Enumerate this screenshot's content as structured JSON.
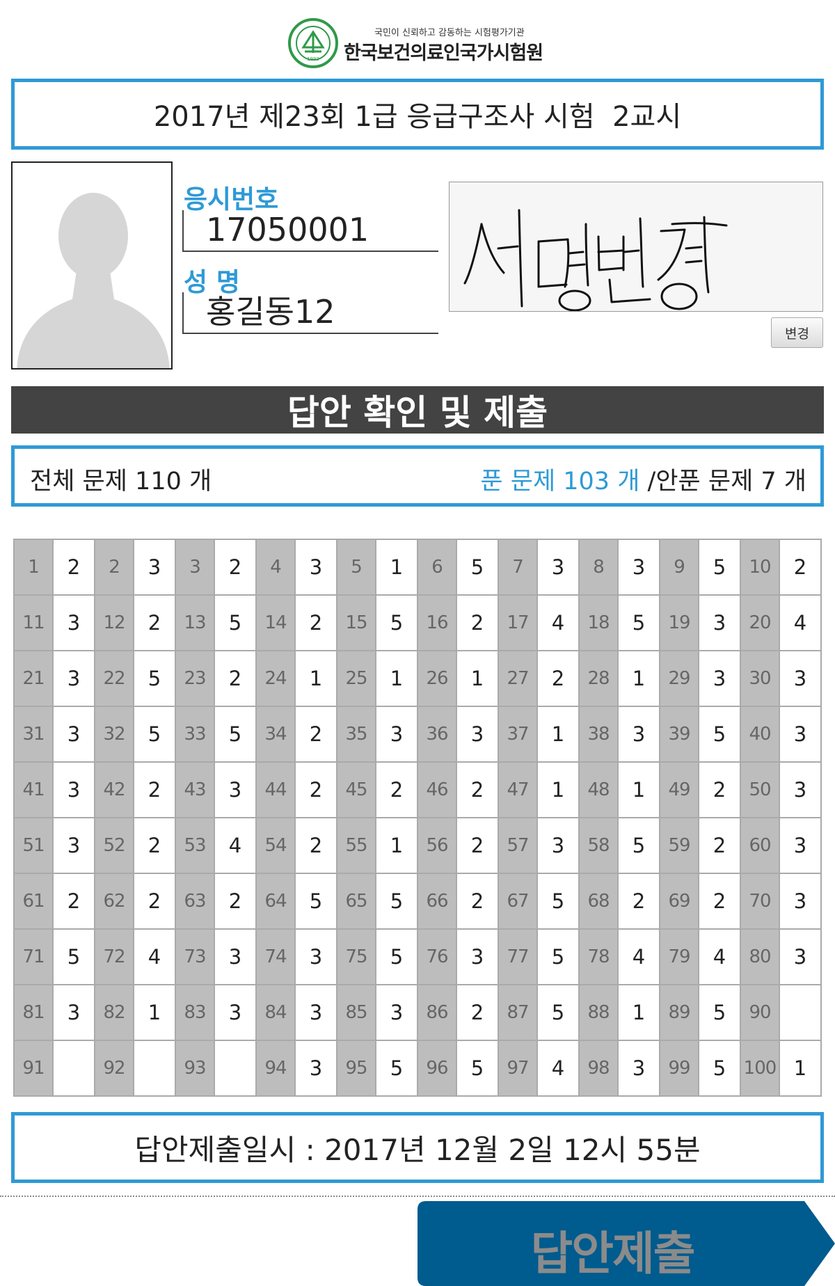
{
  "header": {
    "org_tagline": "국민이 신뢰하고 감동하는 시험평가기관",
    "org_name": "한국보건의료인국가시험원",
    "logo_seal_text": "1992"
  },
  "exam_title": "2017년 제23회 1급 응급구조사 시험  2교시",
  "profile": {
    "id_label": "응시번호",
    "id_value": "17050001",
    "name_label": "성 명",
    "name_value": "홍길동12",
    "signature_text": "서명변경",
    "change_button": "변경"
  },
  "section_title": "답안 확인 및 제출",
  "summary": {
    "total": "전체 문제 110 개",
    "solved": "푼 문제 103 개",
    "separator": "/",
    "unsolved": "안푼 문제 7 개"
  },
  "answers": [
    [
      "1",
      "2"
    ],
    [
      "2",
      "3"
    ],
    [
      "3",
      "2"
    ],
    [
      "4",
      "3"
    ],
    [
      "5",
      "1"
    ],
    [
      "6",
      "5"
    ],
    [
      "7",
      "3"
    ],
    [
      "8",
      "3"
    ],
    [
      "9",
      "5"
    ],
    [
      "10",
      "2"
    ],
    [
      "11",
      "3"
    ],
    [
      "12",
      "2"
    ],
    [
      "13",
      "5"
    ],
    [
      "14",
      "2"
    ],
    [
      "15",
      "5"
    ],
    [
      "16",
      "2"
    ],
    [
      "17",
      "4"
    ],
    [
      "18",
      "5"
    ],
    [
      "19",
      "3"
    ],
    [
      "20",
      "4"
    ],
    [
      "21",
      "3"
    ],
    [
      "22",
      "5"
    ],
    [
      "23",
      "2"
    ],
    [
      "24",
      "1"
    ],
    [
      "25",
      "1"
    ],
    [
      "26",
      "1"
    ],
    [
      "27",
      "2"
    ],
    [
      "28",
      "1"
    ],
    [
      "29",
      "3"
    ],
    [
      "30",
      "3"
    ],
    [
      "31",
      "3"
    ],
    [
      "32",
      "5"
    ],
    [
      "33",
      "5"
    ],
    [
      "34",
      "2"
    ],
    [
      "35",
      "3"
    ],
    [
      "36",
      "3"
    ],
    [
      "37",
      "1"
    ],
    [
      "38",
      "3"
    ],
    [
      "39",
      "5"
    ],
    [
      "40",
      "3"
    ],
    [
      "41",
      "3"
    ],
    [
      "42",
      "2"
    ],
    [
      "43",
      "3"
    ],
    [
      "44",
      "2"
    ],
    [
      "45",
      "2"
    ],
    [
      "46",
      "2"
    ],
    [
      "47",
      "1"
    ],
    [
      "48",
      "1"
    ],
    [
      "49",
      "2"
    ],
    [
      "50",
      "3"
    ],
    [
      "51",
      "3"
    ],
    [
      "52",
      "2"
    ],
    [
      "53",
      "4"
    ],
    [
      "54",
      "2"
    ],
    [
      "55",
      "1"
    ],
    [
      "56",
      "2"
    ],
    [
      "57",
      "3"
    ],
    [
      "58",
      "5"
    ],
    [
      "59",
      "2"
    ],
    [
      "60",
      "3"
    ],
    [
      "61",
      "2"
    ],
    [
      "62",
      "2"
    ],
    [
      "63",
      "2"
    ],
    [
      "64",
      "5"
    ],
    [
      "65",
      "5"
    ],
    [
      "66",
      "2"
    ],
    [
      "67",
      "5"
    ],
    [
      "68",
      "2"
    ],
    [
      "69",
      "2"
    ],
    [
      "70",
      "3"
    ],
    [
      "71",
      "5"
    ],
    [
      "72",
      "4"
    ],
    [
      "73",
      "3"
    ],
    [
      "74",
      "3"
    ],
    [
      "75",
      "5"
    ],
    [
      "76",
      "3"
    ],
    [
      "77",
      "5"
    ],
    [
      "78",
      "4"
    ],
    [
      "79",
      "4"
    ],
    [
      "80",
      "3"
    ],
    [
      "81",
      "3"
    ],
    [
      "82",
      "1"
    ],
    [
      "83",
      "3"
    ],
    [
      "84",
      "3"
    ],
    [
      "85",
      "3"
    ],
    [
      "86",
      "2"
    ],
    [
      "87",
      "5"
    ],
    [
      "88",
      "1"
    ],
    [
      "89",
      "5"
    ],
    [
      "90",
      ""
    ],
    [
      "91",
      ""
    ],
    [
      "92",
      ""
    ],
    [
      "93",
      ""
    ],
    [
      "94",
      "3"
    ],
    [
      "95",
      "5"
    ],
    [
      "96",
      "5"
    ],
    [
      "97",
      "4"
    ],
    [
      "98",
      "3"
    ],
    [
      "99",
      "5"
    ],
    [
      "100",
      "1"
    ]
  ],
  "submit_time": "답안제출일시 : 2017년 12월 2일 12시 55분",
  "submit_button": "답안제출",
  "colors": {
    "accent_blue": "#2e9ad6",
    "section_header_bg": "#434343",
    "number_cell_bg": "#bdbdbd",
    "submit_button_bg": "#005b8e",
    "logo_green": "#2f9a48"
  }
}
